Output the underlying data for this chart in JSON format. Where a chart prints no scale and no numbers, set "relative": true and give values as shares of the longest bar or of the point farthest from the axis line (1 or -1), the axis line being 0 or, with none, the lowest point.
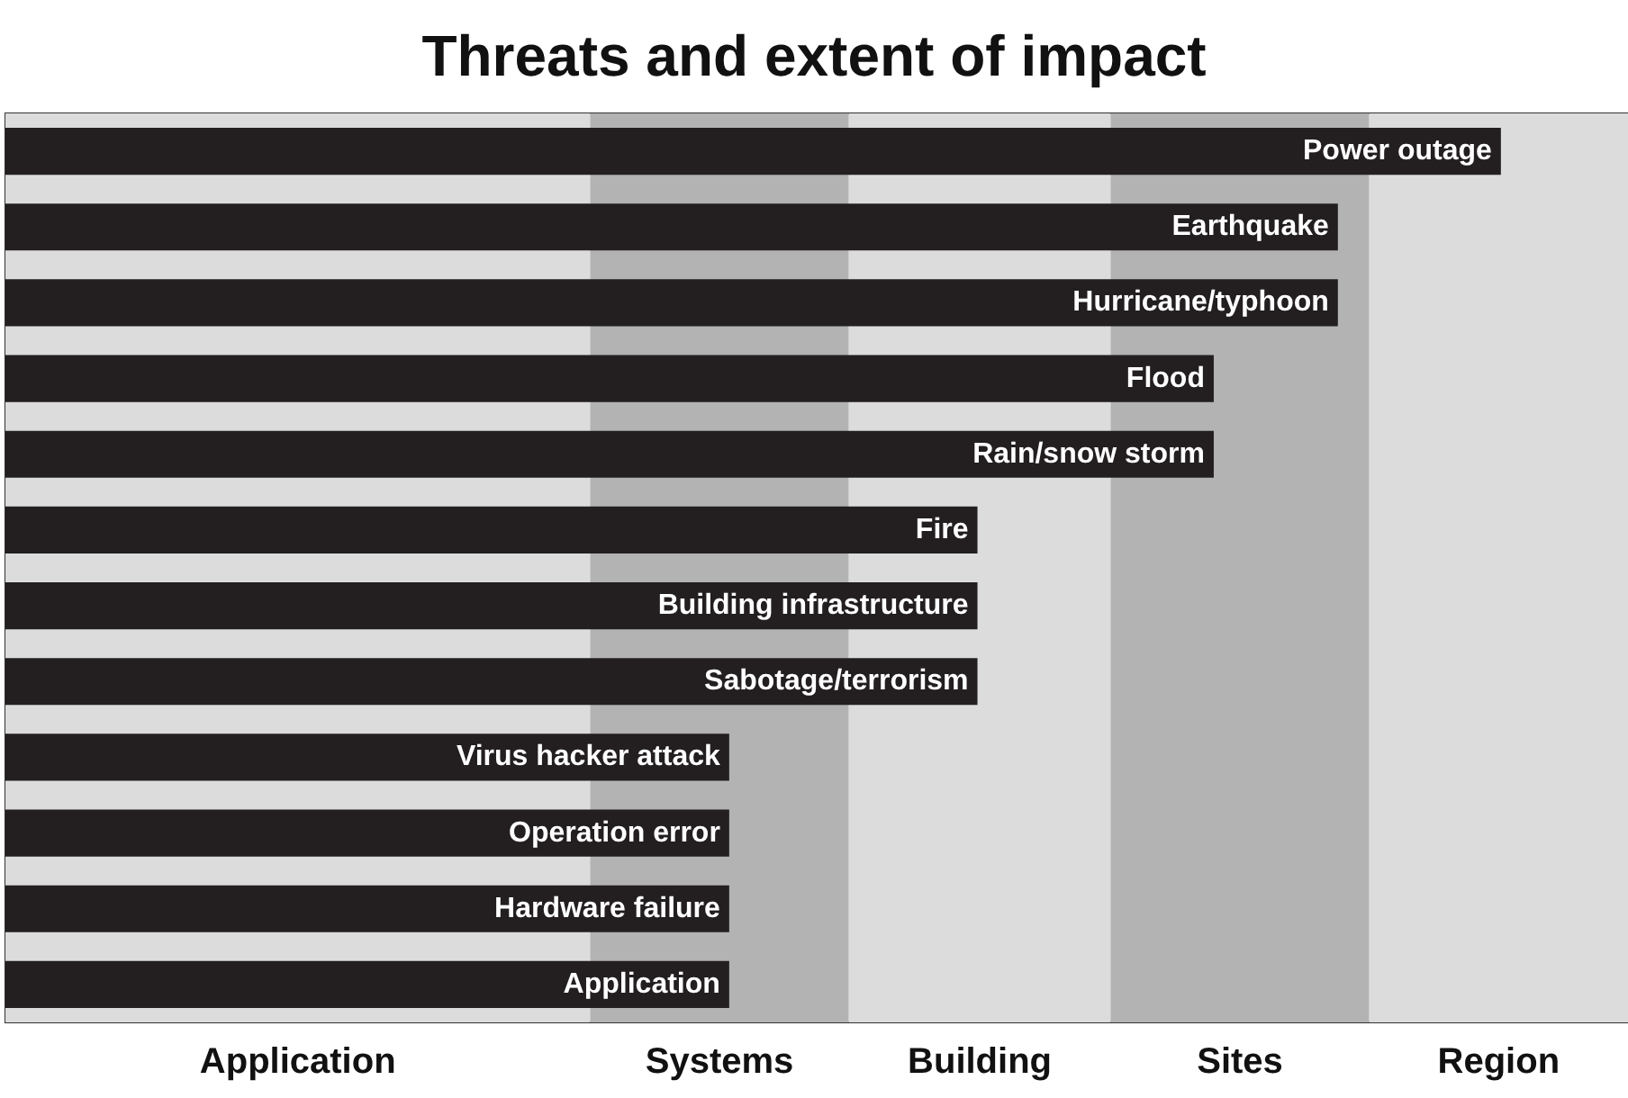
{
  "chart_data": {
    "type": "bar",
    "orientation": "horizontal",
    "relative": true,
    "title": "Threats and extent of impact",
    "categories": [
      "Power outage",
      "Earthquake",
      "Hurricane/typhoon",
      "Flood",
      "Rain/snow storm",
      "Fire",
      "Building infrastructure",
      "Sabotage/terrorism",
      "Virus hacker attack",
      "Operation error",
      "Hardware failure",
      "Application"
    ],
    "values": [
      1,
      0.891,
      0.891,
      0.808,
      0.808,
      0.65,
      0.65,
      0.65,
      0.484,
      0.484,
      0.484,
      0.484
    ],
    "color": "#231f20",
    "bands": [
      {
        "axis": "x",
        "from": 0,
        "to": 0.391,
        "label": "Application",
        "color": "#dcdcdd"
      },
      {
        "axis": "x",
        "from": 0.391,
        "to": 0.564,
        "label": "Systems",
        "color": "#b3b3b3"
      },
      {
        "axis": "x",
        "from": 0.564,
        "to": 0.739,
        "label": "Building",
        "color": "#dcdcdd"
      },
      {
        "axis": "x",
        "from": 0.739,
        "to": 0.912,
        "label": "Sites",
        "color": "#b3b3b3"
      },
      {
        "axis": "x",
        "from": 0.912,
        "to": 1.085,
        "label": "Region",
        "color": "#dcdcdd"
      }
    ],
    "tick_labels": false
  }
}
